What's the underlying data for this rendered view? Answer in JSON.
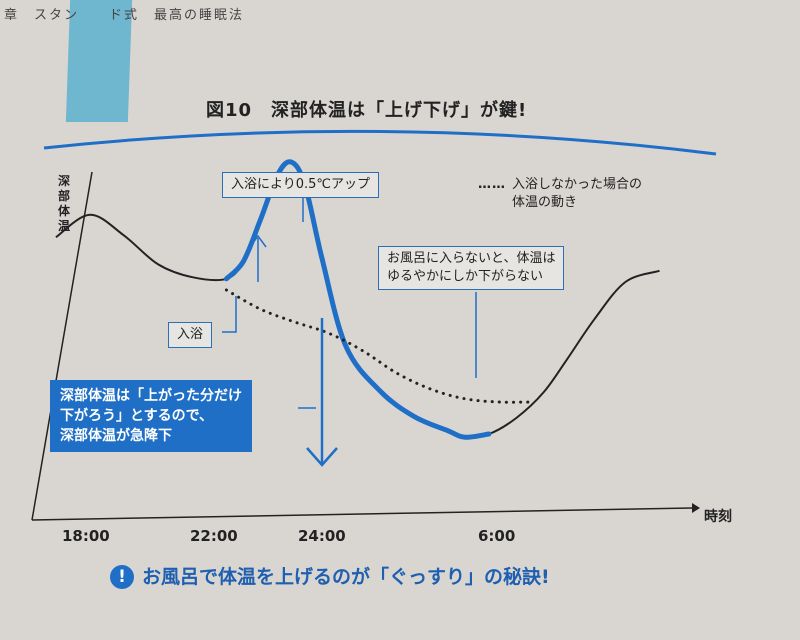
{
  "page": {
    "chapter_header": "章　スタン　　ド式　最高の睡眠法",
    "tip_text": "お風呂で体温を上げるのが「ぐっすり」の秘訣!"
  },
  "colors": {
    "accent": "#1f6fc7",
    "curve": "#222222",
    "tab": "#6fb6cf"
  },
  "icons": {
    "tip": "exclamation-circle-icon"
  },
  "chart_data": {
    "type": "line",
    "title": "図10　深部体温は「上げ下げ」が鍵!",
    "ylabel": "深部体温",
    "xlabel": "時刻",
    "x_ticks": [
      "18:00",
      "22:00",
      "24:00",
      "6:00"
    ],
    "legend": {
      "entry": "入浴しなかった場合の体温の動き",
      "line1": "入浴しなかった場合の",
      "line2": "体温の動き",
      "position": "top-right"
    },
    "annotations": {
      "bath_rise": "入浴により0.5℃アップ",
      "bath": "入浴",
      "no_bath_line1": "お風呂に入らないと、体温は",
      "no_bath_line2": "ゆるやかにしか下がらない",
      "drop_line1": "深部体温は「上がった分だけ",
      "drop_line2": "下がろう」とするので、",
      "drop_line3": "深部体温が急降下"
    },
    "series": [
      {
        "style": "solid",
        "x": [
          17.0,
          18.0,
          19.0,
          20.0,
          21.0,
          22.0,
          22.5,
          23.0,
          23.5,
          23.9,
          24.3,
          24.8,
          25.5,
          26.5,
          27.5,
          28.5,
          29.0,
          29.7,
          30.5,
          31.3,
          32.0,
          32.8,
          33.7,
          34.7
        ],
        "y": [
          0.33,
          0.47,
          0.34,
          0.16,
          0.08,
          0.07,
          0.18,
          0.44,
          0.72,
          0.8,
          0.66,
          0.2,
          -0.35,
          -0.63,
          -0.79,
          -0.88,
          -0.92,
          -0.9,
          -0.8,
          -0.64,
          -0.43,
          -0.18,
          0.05,
          0.12
        ]
      },
      {
        "style": "dotted",
        "x": [
          22.0,
          23.0,
          24.0,
          25.0,
          26.0,
          27.0,
          28.0,
          29.0,
          30.0,
          31.0
        ],
        "y": [
          0.0,
          -0.12,
          -0.2,
          -0.27,
          -0.38,
          -0.52,
          -0.62,
          -0.68,
          -0.7,
          -0.7
        ]
      }
    ],
    "grid": false
  }
}
